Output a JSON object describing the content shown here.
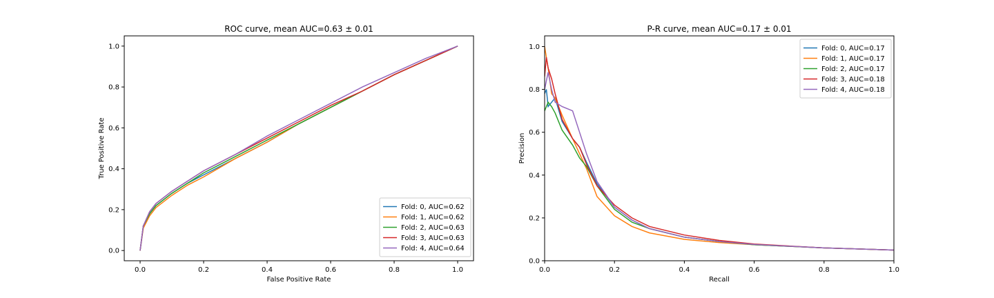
{
  "chart_data": [
    {
      "type": "line",
      "title": "ROC curve, mean AUC=0.63 ± 0.01",
      "xlabel": "False Positive Rate",
      "ylabel": "True Positive Rate",
      "xlim": [
        -0.05,
        1.05
      ],
      "ylim": [
        -0.05,
        1.05
      ],
      "xticks": [
        "0.0",
        "0.2",
        "0.4",
        "0.6",
        "0.8",
        "1.0"
      ],
      "yticks": [
        "0.0",
        "0.2",
        "0.4",
        "0.6",
        "0.8",
        "1.0"
      ],
      "legend_position": "lower-right",
      "grid": false,
      "series": [
        {
          "name": "Fold: 0, AUC=0.62",
          "color": "#1f77b4",
          "x": [
            0,
            0.01,
            0.03,
            0.05,
            0.1,
            0.15,
            0.2,
            0.3,
            0.4,
            0.5,
            0.6,
            0.7,
            0.8,
            0.9,
            1.0
          ],
          "y": [
            0,
            0.12,
            0.18,
            0.22,
            0.28,
            0.33,
            0.37,
            0.45,
            0.53,
            0.62,
            0.7,
            0.78,
            0.86,
            0.93,
            1.0
          ]
        },
        {
          "name": "Fold: 1, AUC=0.62",
          "color": "#ff7f0e",
          "x": [
            0,
            0.01,
            0.03,
            0.05,
            0.1,
            0.15,
            0.2,
            0.3,
            0.4,
            0.5,
            0.6,
            0.7,
            0.8,
            0.9,
            1.0
          ],
          "y": [
            0,
            0.11,
            0.17,
            0.21,
            0.27,
            0.32,
            0.36,
            0.45,
            0.53,
            0.62,
            0.7,
            0.78,
            0.86,
            0.93,
            1.0
          ]
        },
        {
          "name": "Fold: 2, AUC=0.63",
          "color": "#2ca02c",
          "x": [
            0,
            0.01,
            0.03,
            0.05,
            0.1,
            0.15,
            0.2,
            0.3,
            0.4,
            0.5,
            0.6,
            0.7,
            0.8,
            0.9,
            1.0
          ],
          "y": [
            0,
            0.12,
            0.18,
            0.22,
            0.28,
            0.33,
            0.38,
            0.46,
            0.54,
            0.62,
            0.7,
            0.78,
            0.86,
            0.93,
            1.0
          ]
        },
        {
          "name": "Fold: 3, AUC=0.63",
          "color": "#d62728",
          "x": [
            0,
            0.01,
            0.03,
            0.05,
            0.1,
            0.15,
            0.2,
            0.3,
            0.4,
            0.5,
            0.6,
            0.7,
            0.8,
            0.9,
            1.0
          ],
          "y": [
            0,
            0.12,
            0.19,
            0.23,
            0.29,
            0.34,
            0.39,
            0.47,
            0.55,
            0.63,
            0.71,
            0.78,
            0.86,
            0.93,
            1.0
          ]
        },
        {
          "name": "Fold: 4, AUC=0.64",
          "color": "#9467bd",
          "x": [
            0,
            0.01,
            0.03,
            0.05,
            0.1,
            0.15,
            0.2,
            0.3,
            0.4,
            0.5,
            0.6,
            0.7,
            0.8,
            0.9,
            1.0
          ],
          "y": [
            0,
            0.12,
            0.19,
            0.23,
            0.29,
            0.34,
            0.39,
            0.47,
            0.56,
            0.64,
            0.72,
            0.8,
            0.87,
            0.94,
            1.0
          ]
        }
      ]
    },
    {
      "type": "line",
      "title": "P-R curve, mean AUC=0.17 ± 0.01",
      "xlabel": "Recall",
      "ylabel": "Precision",
      "xlim": [
        0,
        1
      ],
      "ylim": [
        0,
        1.05
      ],
      "xticks": [
        "0.0",
        "0.2",
        "0.4",
        "0.6",
        "0.8",
        "1.0"
      ],
      "yticks": [
        "0.0",
        "0.2",
        "0.4",
        "0.6",
        "0.8",
        "1.0"
      ],
      "legend_position": "upper-right",
      "grid": false,
      "series": [
        {
          "name": "Fold: 0, AUC=0.17",
          "color": "#1f77b4",
          "x": [
            0,
            0.005,
            0.01,
            0.02,
            0.03,
            0.05,
            0.08,
            0.1,
            0.12,
            0.15,
            0.2,
            0.25,
            0.3,
            0.4,
            0.5,
            0.6,
            0.8,
            1.0
          ],
          "y": [
            0.78,
            0.8,
            0.72,
            0.74,
            0.76,
            0.65,
            0.57,
            0.53,
            0.46,
            0.36,
            0.25,
            0.19,
            0.15,
            0.11,
            0.09,
            0.075,
            0.06,
            0.05
          ]
        },
        {
          "name": "Fold: 1, AUC=0.17",
          "color": "#ff7f0e",
          "x": [
            0,
            0.005,
            0.01,
            0.02,
            0.03,
            0.05,
            0.08,
            0.1,
            0.12,
            0.15,
            0.2,
            0.25,
            0.3,
            0.4,
            0.5,
            0.6,
            0.8,
            1.0
          ],
          "y": [
            1.0,
            0.95,
            0.9,
            0.78,
            0.76,
            0.68,
            0.57,
            0.5,
            0.43,
            0.3,
            0.21,
            0.16,
            0.13,
            0.1,
            0.085,
            0.075,
            0.06,
            0.05
          ]
        },
        {
          "name": "Fold: 2, AUC=0.17",
          "color": "#2ca02c",
          "x": [
            0,
            0.005,
            0.01,
            0.02,
            0.03,
            0.05,
            0.08,
            0.1,
            0.12,
            0.15,
            0.2,
            0.25,
            0.3,
            0.4,
            0.5,
            0.6,
            0.8,
            1.0
          ],
          "y": [
            0.7,
            0.72,
            0.74,
            0.72,
            0.69,
            0.61,
            0.54,
            0.48,
            0.44,
            0.35,
            0.24,
            0.18,
            0.15,
            0.11,
            0.09,
            0.075,
            0.06,
            0.05
          ]
        },
        {
          "name": "Fold: 3, AUC=0.18",
          "color": "#d62728",
          "x": [
            0,
            0.005,
            0.01,
            0.02,
            0.03,
            0.05,
            0.08,
            0.1,
            0.12,
            0.15,
            0.2,
            0.25,
            0.3,
            0.4,
            0.5,
            0.6,
            0.8,
            1.0
          ],
          "y": [
            0.86,
            0.95,
            0.9,
            0.85,
            0.78,
            0.66,
            0.57,
            0.53,
            0.45,
            0.35,
            0.26,
            0.2,
            0.16,
            0.12,
            0.095,
            0.078,
            0.06,
            0.05
          ]
        },
        {
          "name": "Fold: 4, AUC=0.18",
          "color": "#9467bd",
          "x": [
            0,
            0.005,
            0.01,
            0.02,
            0.03,
            0.05,
            0.08,
            0.1,
            0.12,
            0.15,
            0.2,
            0.25,
            0.3,
            0.4,
            0.5,
            0.6,
            0.8,
            1.0
          ],
          "y": [
            0.8,
            0.84,
            0.88,
            0.8,
            0.74,
            0.72,
            0.7,
            0.6,
            0.5,
            0.37,
            0.25,
            0.19,
            0.15,
            0.11,
            0.09,
            0.076,
            0.06,
            0.05
          ]
        }
      ]
    }
  ]
}
